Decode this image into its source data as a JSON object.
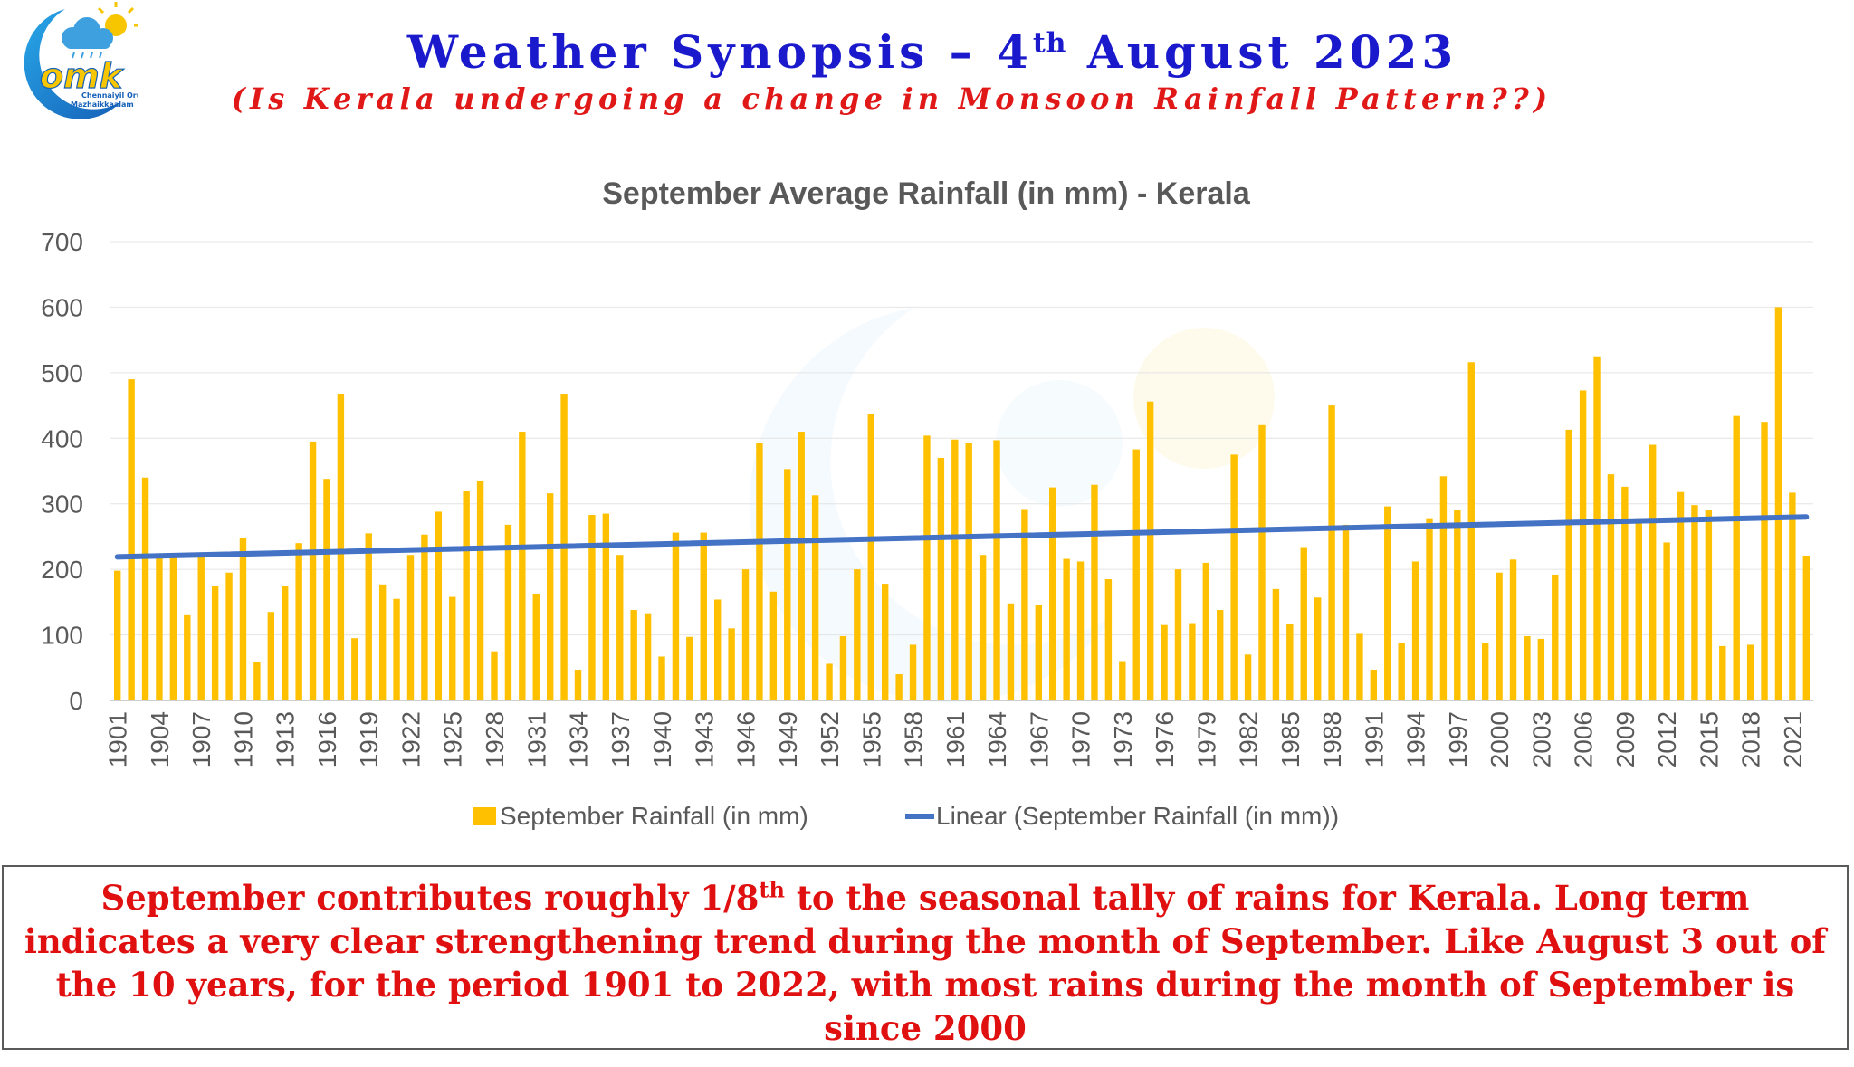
{
  "header": {
    "title_prefix": "Weather Synopsis – 4",
    "title_sup": "th",
    "title_suffix": " August 2023",
    "subtitle": "(Is Kerala undergoing a change in Monsoon Rainfall Pattern??)"
  },
  "logo": {
    "text": "omk",
    "tagline_line1": "Chennaiyil Oru",
    "tagline_line2": "Mazhaikkaalam"
  },
  "colors": {
    "bar": "#FFC000",
    "trend": "#4472C4",
    "title_blue": "#1a1acc",
    "title_red": "#e01818",
    "note_red": "#e01010"
  },
  "chart_data": {
    "type": "bar",
    "title": "September Average Rainfall (in mm) - Kerala",
    "xlabel": "",
    "ylabel": "",
    "ylim": [
      0,
      700
    ],
    "yticks": [
      0,
      100,
      200,
      300,
      400,
      500,
      600,
      700
    ],
    "grid": true,
    "legend_position": "bottom",
    "x_start": 1901,
    "x_end": 2022,
    "xtick_labels": [
      "1901",
      "1904",
      "1907",
      "1910",
      "1913",
      "1916",
      "1919",
      "1922",
      "1925",
      "1928",
      "1931",
      "1934",
      "1937",
      "1940",
      "1943",
      "1946",
      "1949",
      "1952",
      "1955",
      "1958",
      "1961",
      "1964",
      "1967",
      "1970",
      "1973",
      "1976",
      "1979",
      "1982",
      "1985",
      "1988",
      "1991",
      "1994",
      "1997",
      "2000",
      "2003",
      "2006",
      "2009",
      "2012",
      "2015",
      "2018",
      "2021"
    ],
    "series": [
      {
        "name": "September Rainfall (in mm)",
        "type": "bar",
        "values": [
          198,
          490,
          340,
          220,
          220,
          130,
          220,
          175,
          195,
          248,
          58,
          135,
          175,
          240,
          395,
          338,
          468,
          95,
          255,
          177,
          155,
          222,
          253,
          288,
          158,
          320,
          335,
          75,
          268,
          410,
          163,
          316,
          468,
          47,
          283,
          285,
          222,
          138,
          133,
          67,
          256,
          97,
          256,
          154,
          110,
          200,
          393,
          166,
          353,
          410,
          313,
          56,
          98,
          200,
          437,
          178,
          40,
          85,
          404,
          370,
          398,
          393,
          222,
          397,
          148,
          292,
          145,
          325,
          216,
          212,
          329,
          185,
          60,
          383,
          456,
          115,
          200,
          118,
          210,
          138,
          375,
          70,
          420,
          170,
          116,
          234,
          157,
          450,
          268,
          103,
          47,
          296,
          88,
          212,
          278,
          342,
          291,
          516,
          88,
          195,
          215,
          98,
          94,
          192,
          413,
          473,
          525,
          345,
          326,
          278,
          390,
          241,
          318,
          298,
          291,
          83,
          434,
          85,
          425,
          600,
          317,
          221
        ]
      },
      {
        "name": "Linear (September Rainfall (in mm))",
        "type": "line",
        "start_value": 219,
        "end_value": 280
      }
    ]
  },
  "note": {
    "part1": "September contributes roughly 1/8",
    "sup": "th",
    "part2": " to the seasonal tally of rains for Kerala. Long term indicates a very clear strengthening trend during the month of September. Like August 3 out of the 10 years, for the period 1901 to 2022,  with most rains during the month of September is since 2000"
  }
}
